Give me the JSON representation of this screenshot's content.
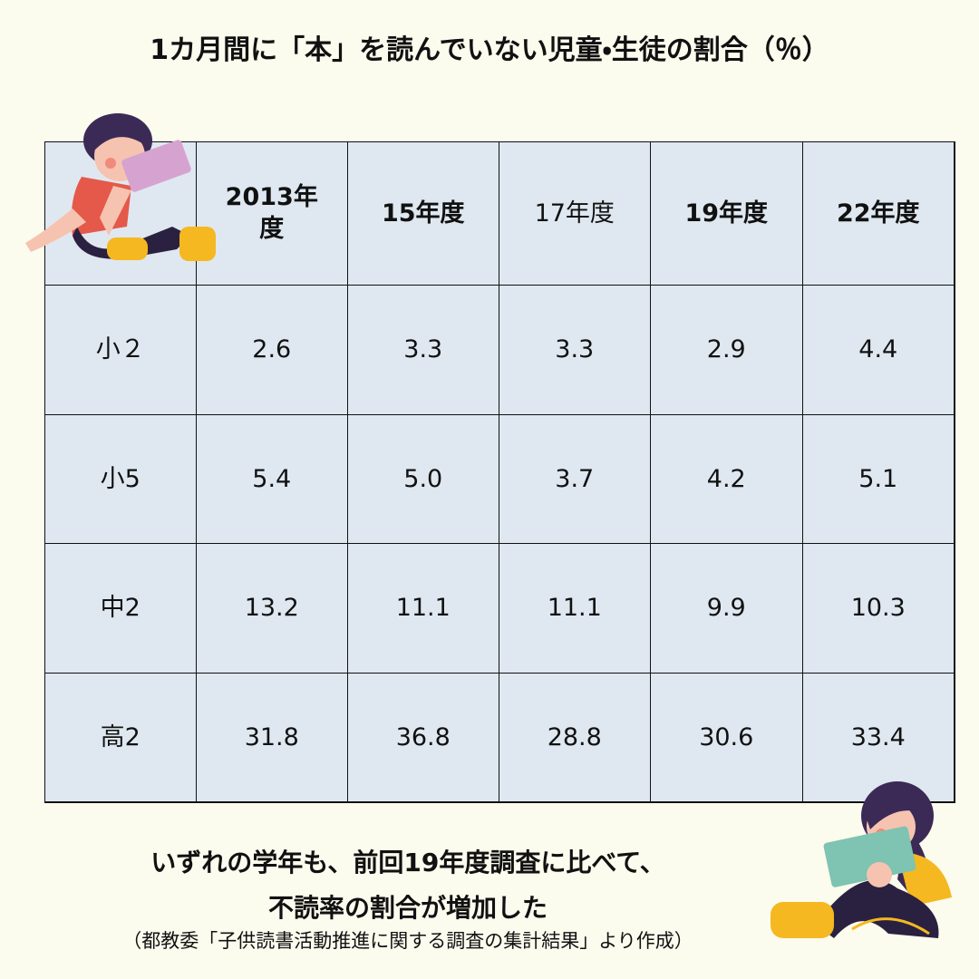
{
  "header": {
    "title": "1カ月間に「本」を読んでいない児童・生徒の割合（％）"
  },
  "table": {
    "header": [
      "2013年度",
      "15年度",
      "17年度",
      "19年度",
      "22年度"
    ],
    "rows": [
      {
        "label": "小２",
        "values": [
          "2.6",
          "3.3",
          "3.3",
          "2.9",
          "4.4"
        ]
      },
      {
        "label": "小5",
        "values": [
          "5.4",
          "5.0",
          "3.7",
          "4.2",
          "5.1"
        ]
      },
      {
        "label": "中2",
        "values": [
          "13.2",
          "11.1",
          "11.1",
          "9.9",
          "10.3"
        ]
      },
      {
        "label": "高2",
        "values": [
          "31.8",
          "36.8",
          "28.8",
          "30.6",
          "33.4"
        ]
      }
    ]
  },
  "footer": {
    "lines": [
      "いずれの学年も、前回19年度調査に比べて、",
      "不読率の割合が増加した"
    ],
    "source": "（都教委「子供読書活動推進に関する調査の集計結果」より作成）"
  }
}
